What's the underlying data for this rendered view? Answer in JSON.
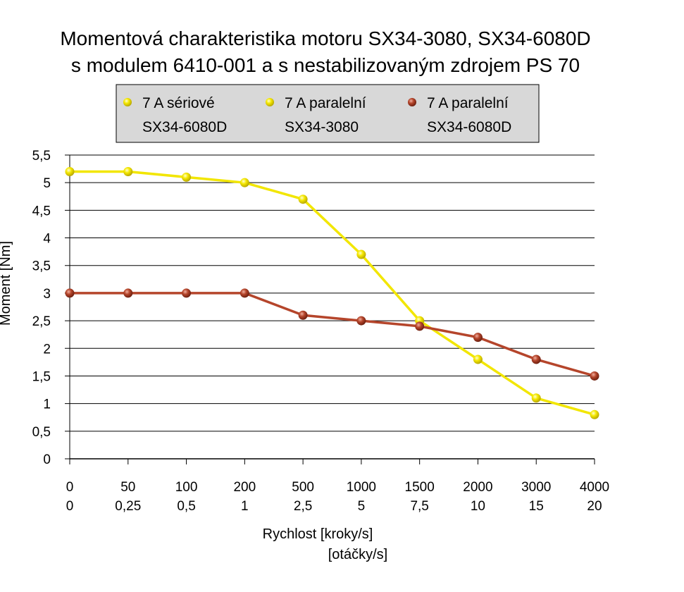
{
  "chart_data": {
    "type": "line",
    "title": [
      "Momentová charakteristika motoru SX34-3080, SX34-6080D",
      "s modulem 6410-001 a s nestabilizovaným zdrojem PS 70"
    ],
    "categories": [
      {
        "steps": "0",
        "rev": "0"
      },
      {
        "steps": "50",
        "rev": "0,25"
      },
      {
        "steps": "100",
        "rev": "0,5"
      },
      {
        "steps": "200",
        "rev": "1"
      },
      {
        "steps": "500",
        "rev": "2,5"
      },
      {
        "steps": "1000",
        "rev": "5"
      },
      {
        "steps": "1500",
        "rev": "7,5"
      },
      {
        "steps": "2000",
        "rev": "10"
      },
      {
        "steps": "3000",
        "rev": "15"
      },
      {
        "steps": "4000",
        "rev": "20"
      }
    ],
    "series": [
      {
        "name": [
          "7 A sériové",
          "SX34-6080D"
        ],
        "color": "#f2e600",
        "values": null
      },
      {
        "name": [
          "7 A paralelní",
          "SX34-3080"
        ],
        "color": "#f2e600",
        "values": [
          5.2,
          5.2,
          5.1,
          5.0,
          4.7,
          3.7,
          2.5,
          1.8,
          1.1,
          0.8
        ]
      },
      {
        "name": [
          "7 A paralelní",
          "SX34-6080D"
        ],
        "color": "#b5452b",
        "values": [
          3.0,
          3.0,
          3.0,
          3.0,
          2.6,
          2.5,
          2.4,
          2.2,
          1.8,
          1.5
        ]
      }
    ],
    "ylim": [
      0,
      5.5
    ],
    "yticks": [
      "0",
      "0,5",
      "1",
      "1,5",
      "2",
      "2,5",
      "3",
      "3,5",
      "4",
      "4,5",
      "5",
      "5,5"
    ],
    "ylabel": "Moment [Nm]",
    "xlabel": [
      "Rychlost [kroky/s]",
      "[otáčky/s]"
    ],
    "grid": true,
    "legend": "top"
  }
}
